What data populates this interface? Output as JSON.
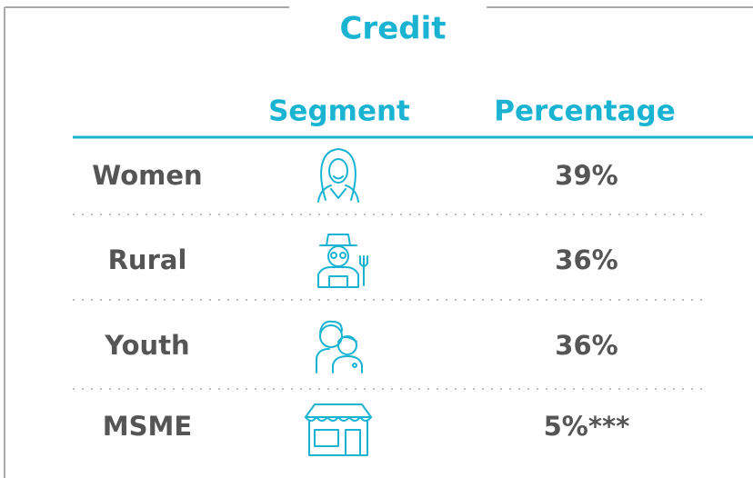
{
  "title": "Credit",
  "table": {
    "headers": [
      "Segment",
      "Percentage"
    ],
    "rows": [
      [
        "Women",
        "39%"
      ],
      [
        "Rural",
        "36%"
      ],
      [
        "Youth",
        "36%"
      ],
      [
        "MSME",
        "5%***"
      ]
    ]
  }
}
